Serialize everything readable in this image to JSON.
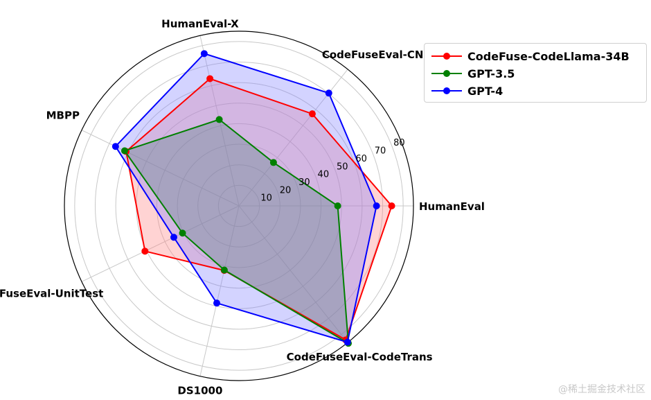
{
  "chart_data": {
    "type": "radar",
    "title": "",
    "axes": [
      "HumanEval",
      "CodeFuseEval-CN",
      "HumanEval-X",
      "MBPP",
      "CodeFuseEval-UnitTest",
      "DS1000",
      "CodeFuseEval-CodeTrans"
    ],
    "r_ticks": [
      10,
      20,
      30,
      40,
      50,
      60,
      70,
      80
    ],
    "rlim": [
      0,
      85
    ],
    "grid": true,
    "legend_position": "top-right",
    "series": [
      {
        "name": "CodeFuse-CodeLlama-34B",
        "color": "#ff0000",
        "fill": "#ff8080",
        "values": [
          74.4,
          57.3,
          63.5,
          61.0,
          50.8,
          32.2,
          83.4
        ]
      },
      {
        "name": "GPT-3.5",
        "color": "#008000",
        "fill": "#408040",
        "values": [
          48.1,
          27.0,
          43.1,
          61.8,
          30.5,
          32.0,
          85.5
        ]
      },
      {
        "name": "GPT-4",
        "color": "#0000ff",
        "fill": "#8080ff",
        "values": [
          67.0,
          70.2,
          76.0,
          66.7,
          35.2,
          48.5,
          84.8
        ]
      }
    ]
  },
  "watermark": "@稀土掘金技术社区"
}
